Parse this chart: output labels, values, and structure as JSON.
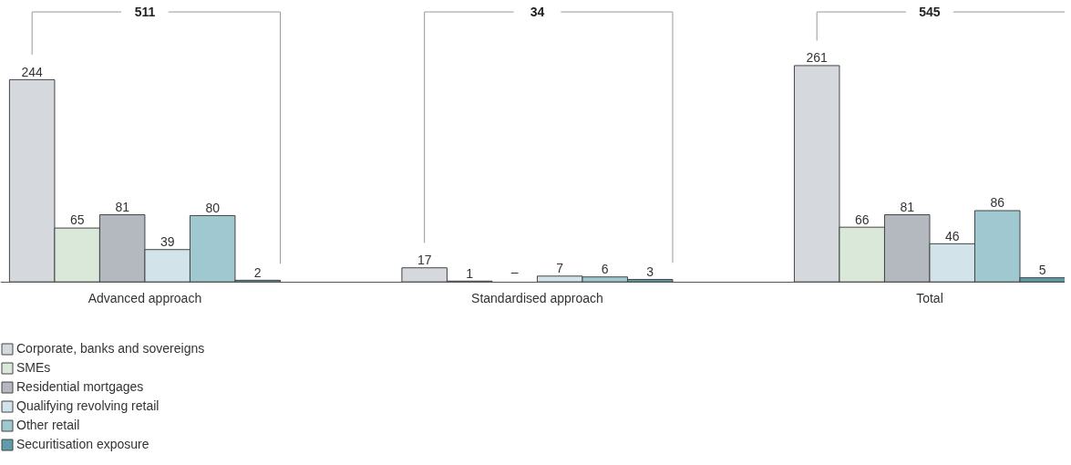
{
  "chart_data": {
    "type": "bar",
    "categories": [
      "Advanced approach",
      "Standardised approach",
      "Total"
    ],
    "series": [
      {
        "name": "Corporate, banks and sovereigns",
        "color": "#d5d8dc",
        "values": [
          244,
          17,
          261
        ]
      },
      {
        "name": "SMEs",
        "color": "#d9e8d9",
        "values": [
          65,
          1,
          66
        ]
      },
      {
        "name": "Residential mortgages",
        "color": "#b4b9c0",
        "values": [
          81,
          null,
          81
        ],
        "value_labels": [
          "81",
          "–",
          "81"
        ]
      },
      {
        "name": "Qualifying revolving retail",
        "color": "#d2e3ea",
        "values": [
          39,
          7,
          46
        ]
      },
      {
        "name": "Other retail",
        "color": "#9fc8d0",
        "values": [
          80,
          6,
          86
        ]
      },
      {
        "name": "Securitisation exposure",
        "color": "#5f9ea8",
        "values": [
          2,
          3,
          5
        ]
      }
    ],
    "annotations": [
      "511",
      "34",
      "545"
    ],
    "data_labels": true,
    "legend": "bottom left",
    "grid": false
  }
}
